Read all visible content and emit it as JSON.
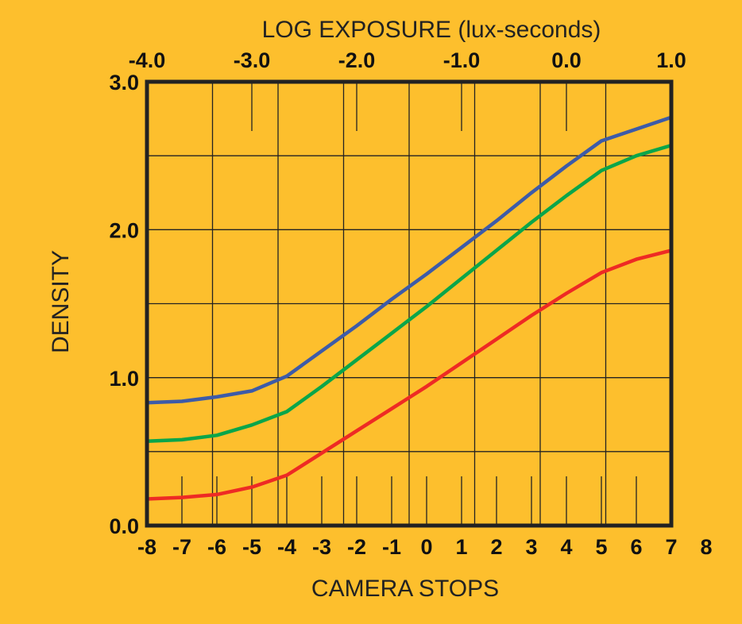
{
  "chart_data": {
    "type": "line",
    "x2_label": "LOG EXPOSURE (lux-seconds)",
    "xlabel": "CAMERA STOPS",
    "ylabel": "DENSITY",
    "x": [
      -8,
      -7,
      -6,
      -5,
      -4,
      -3,
      -2,
      -1,
      0,
      1,
      2,
      3,
      4,
      5,
      6,
      7
    ],
    "series": [
      {
        "color": "#3d5ba8",
        "values": [
          0.83,
          0.84,
          0.87,
          0.91,
          1.01,
          1.18,
          1.35,
          1.53,
          1.7,
          1.88,
          2.06,
          2.25,
          2.43,
          2.6,
          2.68,
          2.76
        ]
      },
      {
        "color": "#0aa64a",
        "values": [
          0.57,
          0.58,
          0.61,
          0.68,
          0.77,
          0.94,
          1.12,
          1.3,
          1.48,
          1.67,
          1.86,
          2.05,
          2.23,
          2.4,
          2.5,
          2.57
        ]
      },
      {
        "color": "#ee2a24",
        "values": [
          0.18,
          0.19,
          0.21,
          0.26,
          0.34,
          0.49,
          0.64,
          0.79,
          0.94,
          1.1,
          1.26,
          1.42,
          1.57,
          1.71,
          1.8,
          1.86
        ]
      }
    ],
    "xlim": [
      -8,
      7
    ],
    "xticks": [
      -8,
      -7,
      -6,
      -5,
      -4,
      -3,
      -2,
      -1,
      0,
      1,
      2,
      3,
      4,
      5,
      6,
      7,
      8
    ],
    "x2lim": [
      -4,
      1
    ],
    "x2ticks": [
      {
        "value": -4,
        "label": "-4.0"
      },
      {
        "value": -3,
        "label": "-3.0"
      },
      {
        "value": -2,
        "label": "-2.0"
      },
      {
        "value": -1,
        "label": "-1.0"
      },
      {
        "value": 0,
        "label": "0.0"
      },
      {
        "value": 1,
        "label": "1.0"
      }
    ],
    "ylim": [
      0,
      3
    ],
    "yticks": [
      {
        "value": 0,
        "label": "0.0"
      },
      {
        "value": 1,
        "label": "1.0"
      },
      {
        "value": 2,
        "label": "2.0"
      },
      {
        "value": 3,
        "label": "3.0"
      }
    ],
    "grid": true
  }
}
